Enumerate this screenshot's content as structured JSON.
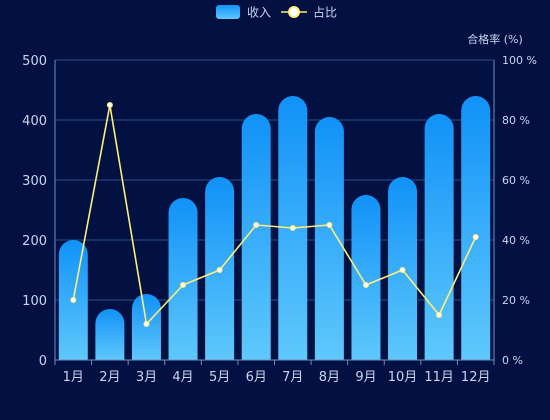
{
  "chart_data": {
    "type": "bar",
    "categories": [
      "1月",
      "2月",
      "3月",
      "4月",
      "5月",
      "6月",
      "7月",
      "8月",
      "9月",
      "10月",
      "11月",
      "12月"
    ],
    "series": [
      {
        "name": "收入",
        "type": "bar",
        "axis": "left",
        "values": [
          200,
          85,
          110,
          270,
          305,
          410,
          440,
          405,
          275,
          305,
          410,
          440
        ]
      },
      {
        "name": "占比",
        "type": "line",
        "axis": "right",
        "values": [
          20,
          85,
          12,
          25,
          30,
          45,
          44,
          45,
          25,
          30,
          15,
          41
        ]
      }
    ],
    "y_left": {
      "label": "",
      "range": [
        0,
        500
      ],
      "ticks": [
        "0",
        "100",
        "200",
        "300",
        "400",
        "500"
      ]
    },
    "y_right": {
      "label": "合格率 (%)",
      "range": [
        0,
        100
      ],
      "ticks": [
        "0 %",
        "20 %",
        "40 %",
        "60 %",
        "80 %",
        "100 %"
      ]
    },
    "legend": {
      "position": "top-center",
      "items": [
        {
          "name": "收入",
          "marker": "bar"
        },
        {
          "name": "占比",
          "marker": "line"
        }
      ]
    },
    "grid": true,
    "colors": {
      "background": "#021142",
      "bar_top": "#1192f8",
      "bar_bottom": "#5fc8fb",
      "line": "#ffec7a",
      "point": "#ffffff",
      "grid": "#2a4d87",
      "axis": "#6f8fc2",
      "text": "#c8d6ef"
    }
  }
}
